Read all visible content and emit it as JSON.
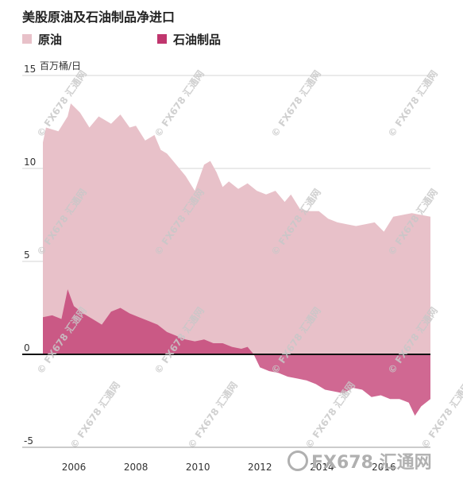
{
  "chart_data": {
    "type": "area",
    "title": "美股原油及石油制品净进口",
    "ylabel_unit": "百万桶/日",
    "ylim": [
      -5,
      15
    ],
    "yticks": [
      {
        "value": 15,
        "label": "15"
      },
      {
        "value": 10,
        "label": "10"
      },
      {
        "value": 5,
        "label": "5"
      },
      {
        "value": 0,
        "label": "0"
      },
      {
        "value": -5,
        "label": "-5"
      }
    ],
    "xlim": [
      2004.7,
      2018.0
    ],
    "xticks": [
      {
        "value": 2006,
        "label": "2006"
      },
      {
        "value": 2008,
        "label": "2008"
      },
      {
        "value": 2010,
        "label": "2010"
      },
      {
        "value": 2012,
        "label": "2012"
      },
      {
        "value": 2014,
        "label": "2014"
      },
      {
        "value": 2016,
        "label": "2016"
      }
    ],
    "grid": true,
    "legend_position": "top-left",
    "series": [
      {
        "name": "原油",
        "color": "#e8c1c9",
        "x": [
          2005.0,
          2005.1,
          2005.5,
          2005.8,
          2005.9,
          2006.2,
          2006.5,
          2006.8,
          2007.2,
          2007.5,
          2007.8,
          2008.0,
          2008.3,
          2008.6,
          2008.8,
          2009.0,
          2009.3,
          2009.6,
          2009.9,
          2010.2,
          2010.4,
          2010.6,
          2010.8,
          2011.0,
          2011.3,
          2011.6,
          2011.9,
          2012.2,
          2012.5,
          2012.8,
          2013.0,
          2013.3,
          2013.6,
          2013.9,
          2014.2,
          2014.5,
          2014.8,
          2015.1,
          2015.4,
          2015.7,
          2016.0,
          2016.3,
          2016.6,
          2016.9,
          2017.2,
          2017.5
        ],
        "values": [
          11.4,
          12.2,
          12.0,
          12.8,
          13.5,
          13.0,
          12.2,
          12.8,
          12.4,
          12.9,
          12.2,
          12.3,
          11.5,
          11.8,
          11.0,
          10.8,
          10.2,
          9.6,
          8.8,
          10.2,
          10.4,
          9.8,
          9.0,
          9.3,
          8.9,
          9.2,
          8.8,
          8.6,
          8.8,
          8.2,
          8.6,
          7.8,
          7.7,
          7.7,
          7.3,
          7.1,
          7.0,
          6.9,
          7.0,
          7.1,
          6.6,
          7.4,
          7.5,
          7.6,
          7.5,
          7.4
        ]
      },
      {
        "name": "石油制品",
        "color": "#c0366e",
        "x": [
          2005.0,
          2005.3,
          2005.6,
          2005.8,
          2006.0,
          2006.3,
          2006.6,
          2006.9,
          2007.2,
          2007.5,
          2007.8,
          2008.1,
          2008.4,
          2008.7,
          2009.0,
          2009.3,
          2009.6,
          2009.9,
          2010.2,
          2010.5,
          2010.8,
          2011.1,
          2011.4,
          2011.6,
          2011.8,
          2012.0,
          2012.3,
          2012.6,
          2012.9,
          2013.2,
          2013.5,
          2013.8,
          2014.1,
          2014.4,
          2014.7,
          2015.0,
          2015.3,
          2015.6,
          2015.9,
          2016.2,
          2016.5,
          2016.8,
          2017.0,
          2017.2,
          2017.5
        ],
        "values": [
          2.0,
          2.1,
          1.9,
          3.5,
          2.6,
          2.2,
          1.9,
          1.6,
          2.3,
          2.5,
          2.2,
          2.0,
          1.8,
          1.6,
          1.2,
          1.0,
          0.8,
          0.7,
          0.8,
          0.6,
          0.6,
          0.4,
          0.3,
          0.4,
          0.0,
          -0.7,
          -0.9,
          -1.0,
          -1.2,
          -1.3,
          -1.4,
          -1.6,
          -1.9,
          -2.0,
          -2.1,
          -1.8,
          -1.9,
          -2.3,
          -2.2,
          -2.4,
          -2.4,
          -2.6,
          -3.3,
          -2.8,
          -2.4
        ]
      }
    ]
  },
  "watermark": {
    "text": "FX678 汇通网"
  },
  "brand": {
    "text": "FX678 汇通网"
  }
}
